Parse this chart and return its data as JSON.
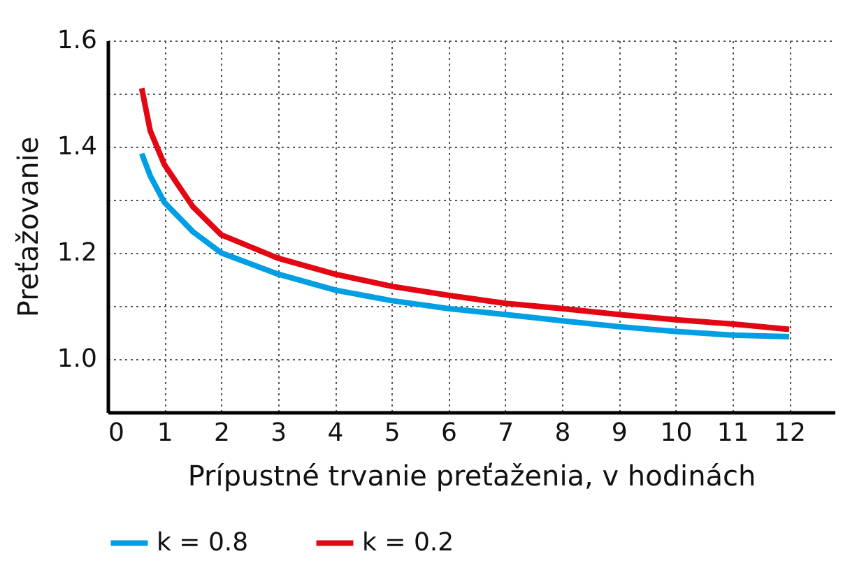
{
  "chart_data": {
    "type": "line",
    "xlabel": "Prípustné trvanie preťaženia, v hodinách",
    "ylabel": "Preťažovanie",
    "xlim": [
      0,
      12.8
    ],
    "xticks": [
      0,
      1,
      2,
      3,
      4,
      5,
      6,
      7,
      8,
      9,
      10,
      11,
      12
    ],
    "ylim": [
      0.9,
      1.6
    ],
    "yticks": [
      {
        "value": 1.0,
        "label": "1.0"
      },
      {
        "value": 1.1,
        "label": null
      },
      {
        "value": 1.2,
        "label": "1.2"
      },
      {
        "value": 1.3,
        "label": null
      },
      {
        "value": 1.4,
        "label": "1.4"
      },
      {
        "value": 1.5,
        "label": null
      },
      {
        "value": 1.6,
        "label": "1.6"
      }
    ],
    "grid": true,
    "legend": "bottom",
    "marker": "none",
    "line_style": "solid",
    "series": [
      {
        "name": "k = 0.8",
        "color": "#009fe3",
        "x": [
          0.6,
          0.75,
          1,
          1.5,
          2,
          3,
          4,
          5,
          6,
          7,
          8,
          9,
          10,
          11,
          12
        ],
        "values": [
          1.387,
          1.345,
          1.295,
          1.24,
          1.2,
          1.16,
          1.13,
          1.11,
          1.095,
          1.084,
          1.072,
          1.061,
          1.052,
          1.045,
          1.042
        ]
      },
      {
        "name": "k = 0.2",
        "color": "#e30613",
        "x": [
          0.6,
          0.75,
          1,
          1.5,
          2,
          3,
          4,
          5,
          6,
          7,
          8,
          9,
          10,
          11,
          12
        ],
        "values": [
          1.51,
          1.43,
          1.366,
          1.287,
          1.234,
          1.19,
          1.16,
          1.137,
          1.12,
          1.105,
          1.095,
          1.084,
          1.074,
          1.066,
          1.056
        ]
      }
    ]
  }
}
